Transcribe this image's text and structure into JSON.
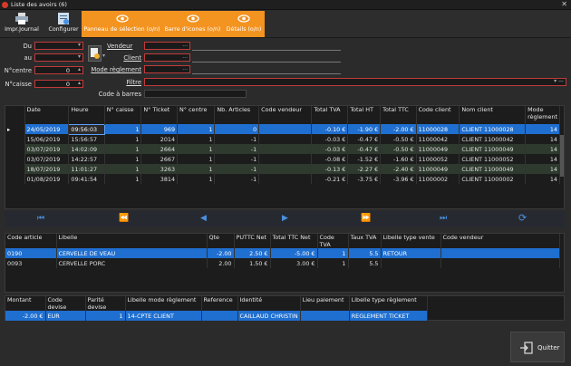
{
  "window": {
    "title": "Liste des avoirs (6)"
  },
  "ribbon": {
    "buttons": [
      {
        "label": "Impr.Journal"
      },
      {
        "label": "Configurer"
      },
      {
        "label": "Panneau de sélection (o/n)"
      },
      {
        "label": "Barre d'icones (o/n)"
      },
      {
        "label": "Détails (o/n)"
      }
    ]
  },
  "filters": {
    "du_label": "Du",
    "au_label": "au",
    "ncentre_label": "N°centre",
    "ncentre_value": "0",
    "ncaisse_label": "N°caisse",
    "ncaisse_value": "0",
    "vendeur_label": "Vendeur",
    "client_label": "Client",
    "mode_label": "Mode règlement",
    "filtre_label": "Filtre",
    "codebarres_label": "Code à barres",
    "ellipsis": "..."
  },
  "grid1": {
    "columns": [
      "Date",
      "Heure",
      "N° caisse",
      "N° Ticket",
      "N° centre",
      "Nb. Articles",
      "Code vendeur",
      "Total TVA",
      "Total HT",
      "Total TTC",
      "Code client",
      "Nom client",
      "Mode règlement"
    ],
    "rows": [
      [
        "24/05/2019",
        "09:56:03",
        "1",
        "969",
        "1",
        "0",
        "",
        "-0.10 €",
        "-1.90 €",
        "-2.00 €",
        "11000028",
        "CLIENT  11000028",
        "14"
      ],
      [
        "15/06/2019",
        "15:56:57",
        "1",
        "2014",
        "1",
        "-1",
        "",
        "-0.03 €",
        "-0.47 €",
        "-0.50 €",
        "11000042",
        "CLIENT  11000042",
        "14"
      ],
      [
        "03/07/2019",
        "14:02:09",
        "1",
        "2664",
        "1",
        "-1",
        "",
        "-0.03 €",
        "-0.47 €",
        "-0.50 €",
        "11000049",
        "CLIENT  11000049",
        "14"
      ],
      [
        "03/07/2019",
        "14:22:57",
        "1",
        "2667",
        "1",
        "-1",
        "",
        "-0.08 €",
        "-1.52 €",
        "-1.60 €",
        "11000052",
        "CLIENT  11000052",
        "14"
      ],
      [
        "18/07/2019",
        "11:01:27",
        "1",
        "3263",
        "1",
        "-1",
        "",
        "-0.13 €",
        "-2.27 €",
        "-2.40 €",
        "11000049",
        "CLIENT  11000049",
        "14"
      ],
      [
        "01/08/2019",
        "09:41:54",
        "1",
        "3814",
        "1",
        "-1",
        "",
        "-0.21 €",
        "-3.75 €",
        "-3.96 €",
        "11000002",
        "CLIENT  11000002",
        "14"
      ]
    ]
  },
  "nav": {
    "first": "⏮",
    "prev_page": "⏪",
    "prev": "◀",
    "next": "▶",
    "next_page": "⏩",
    "last": "⏭",
    "refresh": "⟳"
  },
  "grid2": {
    "columns": [
      "Code article",
      "Libelle",
      "Qte",
      "PUTTC Net",
      "Total TTC Net",
      "Code TVA",
      "Taux TVA",
      "Libelle type vente",
      "Code vendeur"
    ],
    "rows": [
      [
        "0190",
        "CERVELLE DE VEAU",
        "-2.00",
        "2.50 €",
        "-5.00 €",
        "1",
        "5.5",
        "RETOUR",
        ""
      ],
      [
        "0093",
        "CERVELLE PORC",
        "2.00",
        "1.50 €",
        "3.00 €",
        "1",
        "5.5",
        "",
        ""
      ]
    ]
  },
  "grid3": {
    "columns": [
      "Montant",
      "Code devise",
      "Parité devise",
      "Libelle mode règlement",
      "Reference",
      "Identité",
      "Lieu paiement",
      "Libelle type règlement"
    ],
    "rows": [
      [
        "-2.00 €",
        "EUR",
        "1",
        "14-CPTE CLIENT",
        "",
        "CAILLAUD CHRISTIN",
        "",
        "REGLEMENT TICKET"
      ]
    ]
  },
  "quit": {
    "label": "Quitter"
  }
}
